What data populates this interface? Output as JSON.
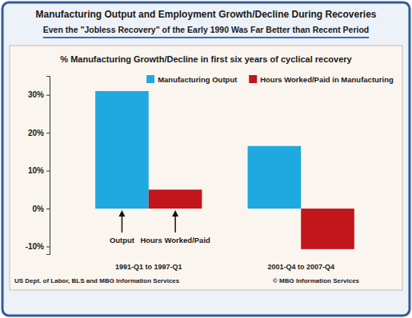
{
  "chart_data": {
    "type": "bar",
    "title": "Manufacturing Output and Employment Growth/Decline During Recoveries",
    "subtitle": "Even the \"Jobless Recovery\" of the Early 1990 Was Far Better than Recent Period",
    "plot_title": "% Manufacturing Growth/Decline in first six years of cyclical recovery",
    "categories": [
      "1991-Q1 to 1997-Q1",
      "2001-Q4 to 2007-Q4"
    ],
    "series": [
      {
        "name": "Manufacturing Output",
        "color": "#1ea9e1",
        "values": [
          31,
          16.5
        ]
      },
      {
        "name": "Hours Worked/Paid in Manufacturing",
        "color": "#c3161c",
        "values": [
          5,
          -10.7
        ]
      }
    ],
    "ylim": [
      -12,
      35
    ],
    "yticks": [
      {
        "value": -10,
        "label": "-10%"
      },
      {
        "value": 0,
        "label": "0%"
      },
      {
        "value": 10,
        "label": "10%"
      },
      {
        "value": 20,
        "label": "20%"
      },
      {
        "value": 30,
        "label": "30%"
      }
    ],
    "grid": false,
    "legend": "top-right",
    "annotations": [
      "Output",
      "Hours Worked/Paid"
    ],
    "source": "US Dept. of Labor, BLS and MBG Information Services",
    "credit": "© MBG Information Services"
  }
}
